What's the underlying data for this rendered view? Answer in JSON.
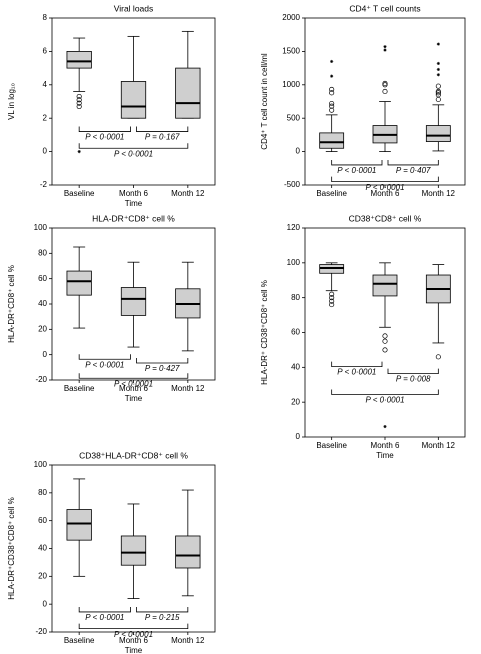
{
  "chart_data": [
    {
      "type": "box",
      "title": "Viral loads",
      "y_label": "VL in log₁₀",
      "x_label": "Time",
      "categories": [
        "Baseline",
        "Month 6",
        "Month 12"
      ],
      "boxes": [
        {
          "whisker_low": 3.6,
          "q1": 5.0,
          "median": 5.4,
          "q3": 6.0,
          "whisker_high": 6.8,
          "outliers": [
            3.3,
            3.1,
            2.9,
            2.7
          ],
          "extremes": [
            0
          ]
        },
        {
          "whisker_low": 2.0,
          "q1": 2.0,
          "median": 2.7,
          "q3": 4.2,
          "whisker_high": 6.9,
          "outliers": [],
          "extremes": []
        },
        {
          "whisker_low": 2.0,
          "q1": 2.0,
          "median": 2.9,
          "q3": 5.0,
          "whisker_high": 7.2,
          "outliers": [],
          "extremes": []
        }
      ],
      "ylim": [
        -2,
        8
      ],
      "yticks": [
        -2,
        0,
        2,
        4,
        6,
        8
      ],
      "annotations": [
        "P < 0·0001",
        "P = 0·167",
        "P < 0·0001"
      ]
    },
    {
      "type": "box",
      "title": "CD4⁺ T cell counts",
      "y_label": "CD4⁺ T cell count in cell/ml",
      "categories": [
        "Baseline",
        "Month 6",
        "Month 12"
      ],
      "boxes": [
        {
          "whisker_low": 0,
          "q1": 50,
          "median": 140,
          "q3": 280,
          "whisker_high": 550,
          "outliers": [
            620,
            680,
            720,
            880,
            930
          ],
          "extremes": [
            1130,
            1350
          ]
        },
        {
          "whisker_low": 0,
          "q1": 130,
          "median": 250,
          "q3": 390,
          "whisker_high": 750,
          "outliers": [
            900,
            1000,
            1020
          ],
          "extremes": [
            1520,
            1570
          ]
        },
        {
          "whisker_low": 10,
          "q1": 150,
          "median": 240,
          "q3": 390,
          "whisker_high": 700,
          "outliers": [
            780,
            850,
            880,
            900,
            980
          ],
          "extremes": [
            1150,
            1230,
            1320,
            1610
          ]
        }
      ],
      "ylim": [
        -500,
        2000
      ],
      "yticks": [
        -500,
        0,
        500,
        1000,
        1500,
        2000
      ],
      "annotations": [
        "P < 0·0001",
        "P = 0·407",
        "P < 0·0001"
      ]
    },
    {
      "type": "box",
      "title": "HLA-DR⁺CD8⁺ cell %",
      "y_label": "HLA-DR⁺CD8⁺ cell %",
      "x_label": "Time",
      "categories": [
        "Baseline",
        "Month 6",
        "Month 12"
      ],
      "boxes": [
        {
          "whisker_low": 21,
          "q1": 47,
          "median": 58,
          "q3": 66,
          "whisker_high": 85,
          "outliers": [],
          "extremes": []
        },
        {
          "whisker_low": 6,
          "q1": 31,
          "median": 44,
          "q3": 53,
          "whisker_high": 73,
          "outliers": [],
          "extremes": []
        },
        {
          "whisker_low": 3,
          "q1": 29,
          "median": 40,
          "q3": 52,
          "whisker_high": 73,
          "outliers": [],
          "extremes": []
        }
      ],
      "ylim": [
        -20,
        100
      ],
      "yticks": [
        -20,
        0,
        20,
        40,
        60,
        80,
        100
      ],
      "annotations": [
        "P < 0·0001",
        "P = 0·427",
        "P < 0·0001"
      ]
    },
    {
      "type": "box",
      "title": "CD38⁺CD8⁺ cell %",
      "y_label": "HLA-DR⁺ CD38⁺CD8⁺ cell %",
      "x_label": "Time",
      "categories": [
        "Baseline",
        "Month 6",
        "Month 12"
      ],
      "boxes": [
        {
          "whisker_low": 84,
          "q1": 94,
          "median": 97,
          "q3": 99,
          "whisker_high": 100,
          "outliers": [
            76,
            78,
            80,
            82
          ],
          "extremes": []
        },
        {
          "whisker_low": 63,
          "q1": 81,
          "median": 88,
          "q3": 93,
          "whisker_high": 100,
          "outliers": [
            50,
            55,
            58
          ],
          "extremes": [
            6
          ]
        },
        {
          "whisker_low": 54,
          "q1": 77,
          "median": 85,
          "q3": 93,
          "whisker_high": 99,
          "outliers": [
            46
          ],
          "extremes": []
        }
      ],
      "ylim": [
        0,
        120
      ],
      "yticks": [
        0,
        20,
        40,
        60,
        80,
        100,
        120
      ],
      "annotations": [
        "P < 0·0001",
        "P = 0·008",
        "P < 0·0001"
      ]
    },
    {
      "type": "box",
      "title": "CD38⁺HLA-DR⁺CD8⁺ cell %",
      "y_label": "HLA-DR⁺CD38⁺CD8⁺ cell %",
      "x_label": "Time",
      "categories": [
        "Baseline",
        "Month 6",
        "Month 12"
      ],
      "boxes": [
        {
          "whisker_low": 20,
          "q1": 46,
          "median": 58,
          "q3": 68,
          "whisker_high": 90,
          "outliers": [],
          "extremes": []
        },
        {
          "whisker_low": 4,
          "q1": 28,
          "median": 37,
          "q3": 49,
          "whisker_high": 72,
          "outliers": [],
          "extremes": []
        },
        {
          "whisker_low": 6,
          "q1": 26,
          "median": 35,
          "q3": 49,
          "whisker_high": 82,
          "outliers": [],
          "extremes": []
        }
      ],
      "ylim": [
        -20,
        100
      ],
      "yticks": [
        -20,
        0,
        20,
        40,
        60,
        80,
        100
      ],
      "annotations": [
        "P < 0·0001",
        "P = 0·215",
        "P < 0·0001"
      ]
    }
  ]
}
